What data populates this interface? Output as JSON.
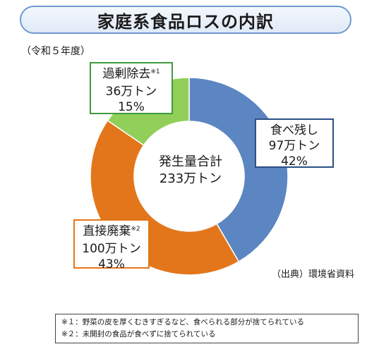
{
  "header": {
    "title": "家庭系食品ロスの内訳",
    "period": "（令和５年度）"
  },
  "chart_data": {
    "type": "pie",
    "title": "家庭系食品ロスの内訳",
    "center": {
      "line1": "発生量合計",
      "line2": "233万トン"
    },
    "categories": [
      {
        "name": "食べ残し",
        "value": 97,
        "value_label": "97万トン",
        "percent": 42,
        "percent_label": "42%",
        "note": "",
        "color": "#5b86c2"
      },
      {
        "name": "直接廃棄",
        "value": 100,
        "value_label": "100万トン",
        "percent": 43,
        "percent_label": "43%",
        "note": "※2",
        "color": "#e3761a"
      },
      {
        "name": "過剰除去",
        "value": 36,
        "value_label": "36万トン",
        "percent": 15,
        "percent_label": "15%",
        "note": "※1",
        "color": "#92cf5a"
      }
    ]
  },
  "source": "（出典）環境省資料",
  "notes": [
    "※１：野菜の皮を厚くむきすぎるなど、食べられる部分が捨てられている",
    "※２：未開封の食品が食べずに捨てられている"
  ]
}
